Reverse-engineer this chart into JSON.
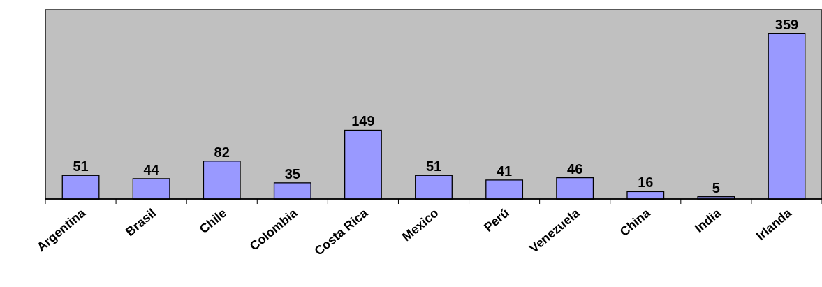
{
  "chart_data": {
    "type": "bar",
    "categories": [
      "Argentina",
      "Brasil",
      "Chile",
      "Colombia",
      "Costa Rica",
      "Mexico",
      "Perú",
      "Venezuela",
      "China",
      "India",
      "Irlanda"
    ],
    "values": [
      51,
      44,
      82,
      35,
      149,
      51,
      41,
      46,
      16,
      5,
      359
    ],
    "color": "#9999ff",
    "data_labels": true
  }
}
